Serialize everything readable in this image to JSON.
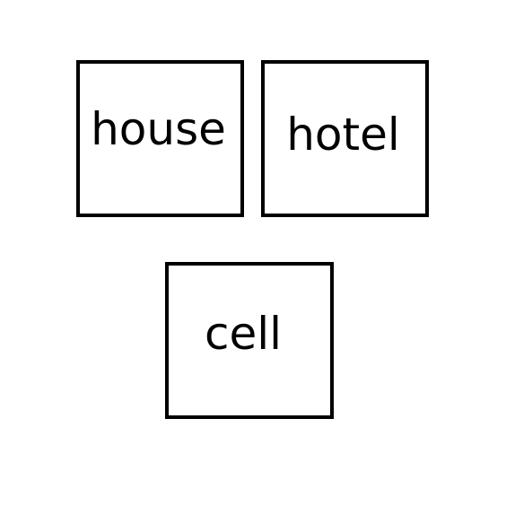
{
  "words": [
    {
      "label": "house"
    },
    {
      "label": "hotel"
    },
    {
      "label": "cell"
    }
  ],
  "colors": {
    "border": "#000000",
    "text": "#000000",
    "background": "#ffffff"
  }
}
